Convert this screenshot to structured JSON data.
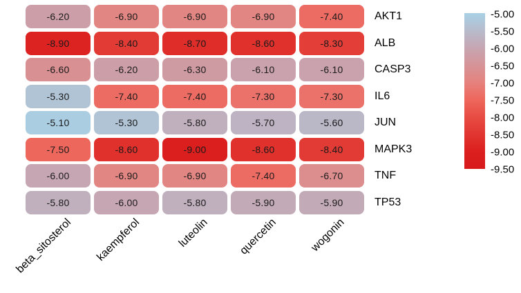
{
  "figure": {
    "background": "#ffffff",
    "cell_text_color": "#1a1a1a",
    "label_text_color": "#000000"
  },
  "chart_data": {
    "type": "heatmap",
    "title": "",
    "xlabel": "",
    "ylabel": "",
    "rows": [
      "AKT1",
      "ALB",
      "CASP3",
      "IL6",
      "JUN",
      "MAPK3",
      "TNF",
      "TP53"
    ],
    "columns": [
      "beta_sitosterol",
      "kaempferol",
      "luteolin",
      "quercetin",
      "wogonin"
    ],
    "values": [
      [
        -6.2,
        -6.9,
        -6.9,
        -6.9,
        -7.4
      ],
      [
        -8.9,
        -8.4,
        -8.7,
        -8.6,
        -8.3
      ],
      [
        -6.6,
        -6.2,
        -6.3,
        -6.1,
        -6.1
      ],
      [
        -5.3,
        -7.4,
        -7.4,
        -7.3,
        -7.3
      ],
      [
        -5.1,
        -5.3,
        -5.8,
        -5.7,
        -5.6
      ],
      [
        -7.5,
        -8.6,
        -9.0,
        -8.6,
        -8.4
      ],
      [
        -6.0,
        -6.9,
        -6.9,
        -7.4,
        -6.7
      ],
      [
        -5.8,
        -6.0,
        -5.8,
        -5.9,
        -5.9
      ]
    ],
    "cell_label_decimals": 2,
    "grid": "off",
    "legend_position": "right",
    "colorbar": {
      "domain_top": -5.0,
      "domain_bottom": -9.5,
      "ticks": [
        "-5.00",
        "-5.50",
        "-6.00",
        "-6.50",
        "-7.00",
        "-7.50",
        "-8.00",
        "-8.50",
        "-9.00",
        "-9.50"
      ],
      "gradient_stops": [
        {
          "value": -5.0,
          "color": "#A8D1E6"
        },
        {
          "value": -6.0,
          "color": "#C6A6B2"
        },
        {
          "value": -7.0,
          "color": "#E5827E"
        },
        {
          "value": -7.5,
          "color": "#EE675C"
        },
        {
          "value": -8.0,
          "color": "#E74C43"
        },
        {
          "value": -9.0,
          "color": "#DB1F1E"
        },
        {
          "value": -9.5,
          "color": "#D7191C"
        }
      ]
    }
  }
}
